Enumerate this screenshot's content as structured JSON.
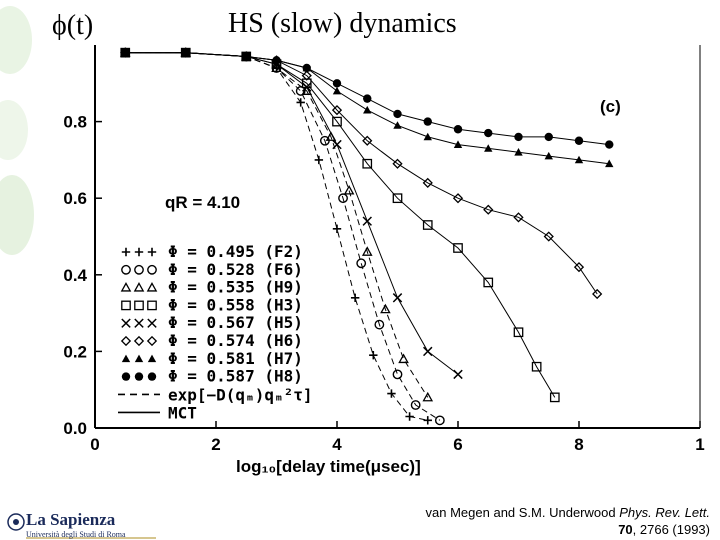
{
  "slide": {
    "symbol_label": "ϕ(t)",
    "title": "HS (slow) dynamics",
    "logo_name": "La Sapienza",
    "logo_subtitle": "Università degli Studi di Roma",
    "citation_authors": "van Megen and S.M. Underwood ",
    "citation_journal": "Phys. Rev. Lett.",
    "citation_volume": "70",
    "citation_rest": ", 2766 (1993)"
  },
  "chart_data": {
    "type": "scatter",
    "panel_label": "(c)",
    "annotation": "qR = 4.10",
    "xlabel": "log₁₀[delay time(μsec)]",
    "xlim": [
      0,
      10
    ],
    "ylim": [
      0,
      1
    ],
    "x_ticks": [
      "0",
      "2",
      "4",
      "6",
      "8",
      "1"
    ],
    "y_ticks": [
      "0.0",
      "0.2",
      "0.4",
      "0.6",
      "0.8"
    ],
    "grid": false,
    "legend_position": "lower-left",
    "series": [
      {
        "symbol": "+++",
        "label": "Φ   =  0.495  (F2)",
        "color": "#000000",
        "x": [
          0.5,
          1.5,
          2.5,
          3.0,
          3.4,
          3.7,
          4.0,
          4.3,
          4.6,
          4.9,
          5.2,
          5.5
        ],
        "y": [
          0.98,
          0.98,
          0.97,
          0.94,
          0.85,
          0.7,
          0.52,
          0.34,
          0.19,
          0.09,
          0.03,
          0.02
        ]
      },
      {
        "symbol": "○○○",
        "label": "Φ   =  0.528  (F6)",
        "color": "#000000",
        "x": [
          0.5,
          1.5,
          2.5,
          3.0,
          3.4,
          3.8,
          4.1,
          4.4,
          4.7,
          5.0,
          5.3,
          5.7
        ],
        "y": [
          0.98,
          0.98,
          0.97,
          0.94,
          0.88,
          0.75,
          0.6,
          0.43,
          0.27,
          0.14,
          0.06,
          0.02
        ]
      },
      {
        "symbol": "△△△",
        "label": "Φ   =  0.535  (H9)",
        "color": "#000000",
        "x": [
          0.5,
          1.5,
          2.5,
          3.0,
          3.5,
          3.9,
          4.2,
          4.5,
          4.8,
          5.1,
          5.5
        ],
        "y": [
          0.98,
          0.98,
          0.97,
          0.94,
          0.88,
          0.76,
          0.62,
          0.46,
          0.31,
          0.18,
          0.08
        ]
      },
      {
        "symbol": "□□□",
        "label": "Φ   =  0.558  (H3)",
        "color": "#000000",
        "x": [
          0.5,
          1.5,
          2.5,
          3.0,
          3.5,
          4.0,
          4.5,
          5.0,
          5.5,
          6.0,
          6.5,
          7.0,
          7.3,
          7.6
        ],
        "y": [
          0.98,
          0.98,
          0.97,
          0.95,
          0.9,
          0.8,
          0.69,
          0.6,
          0.53,
          0.47,
          0.38,
          0.25,
          0.16,
          0.08
        ]
      },
      {
        "symbol": "×××",
        "label": "Φ   =  0.567  (H5)",
        "color": "#000000",
        "x": [
          0.5,
          1.5,
          2.5,
          3.0,
          3.5,
          4.0,
          4.5,
          5.0,
          5.5,
          6.0
        ],
        "y": [
          0.98,
          0.98,
          0.97,
          0.95,
          0.89,
          0.74,
          0.54,
          0.34,
          0.2,
          0.14
        ]
      },
      {
        "symbol": "◇◇◇",
        "label": "Φ   =  0.574  (H6)",
        "color": "#000000",
        "x": [
          0.5,
          1.5,
          2.5,
          3.0,
          3.5,
          4.0,
          4.5,
          5.0,
          5.5,
          6.0,
          6.5,
          7.0,
          7.5,
          8.0,
          8.3
        ],
        "y": [
          0.98,
          0.98,
          0.97,
          0.96,
          0.92,
          0.83,
          0.75,
          0.69,
          0.64,
          0.6,
          0.57,
          0.55,
          0.5,
          0.42,
          0.35
        ]
      },
      {
        "symbol": "▲▲▲",
        "label": "Φ   =  0.581  (H7)",
        "color": "#000000",
        "x": [
          0.5,
          1.5,
          2.5,
          3.0,
          3.5,
          4.0,
          4.5,
          5.0,
          5.5,
          6.0,
          6.5,
          7.0,
          7.5,
          8.0,
          8.5
        ],
        "y": [
          0.98,
          0.98,
          0.97,
          0.96,
          0.94,
          0.88,
          0.83,
          0.79,
          0.76,
          0.74,
          0.73,
          0.72,
          0.71,
          0.7,
          0.69
        ]
      },
      {
        "symbol": "●●●",
        "label": "Φ   =  0.587  (H8)",
        "color": "#000000",
        "x": [
          0.5,
          1.5,
          2.5,
          3.0,
          3.5,
          4.0,
          4.5,
          5.0,
          5.5,
          6.0,
          6.5,
          7.0,
          7.5,
          8.0,
          8.5
        ],
        "y": [
          0.98,
          0.98,
          0.97,
          0.96,
          0.94,
          0.9,
          0.86,
          0.82,
          0.8,
          0.78,
          0.77,
          0.76,
          0.76,
          0.75,
          0.74
        ]
      }
    ],
    "fit_lines": [
      {
        "style": "dashed",
        "label": "exp[−D(qₘ)qₘ²τ]"
      },
      {
        "style": "solid",
        "label": "MCT"
      }
    ]
  }
}
